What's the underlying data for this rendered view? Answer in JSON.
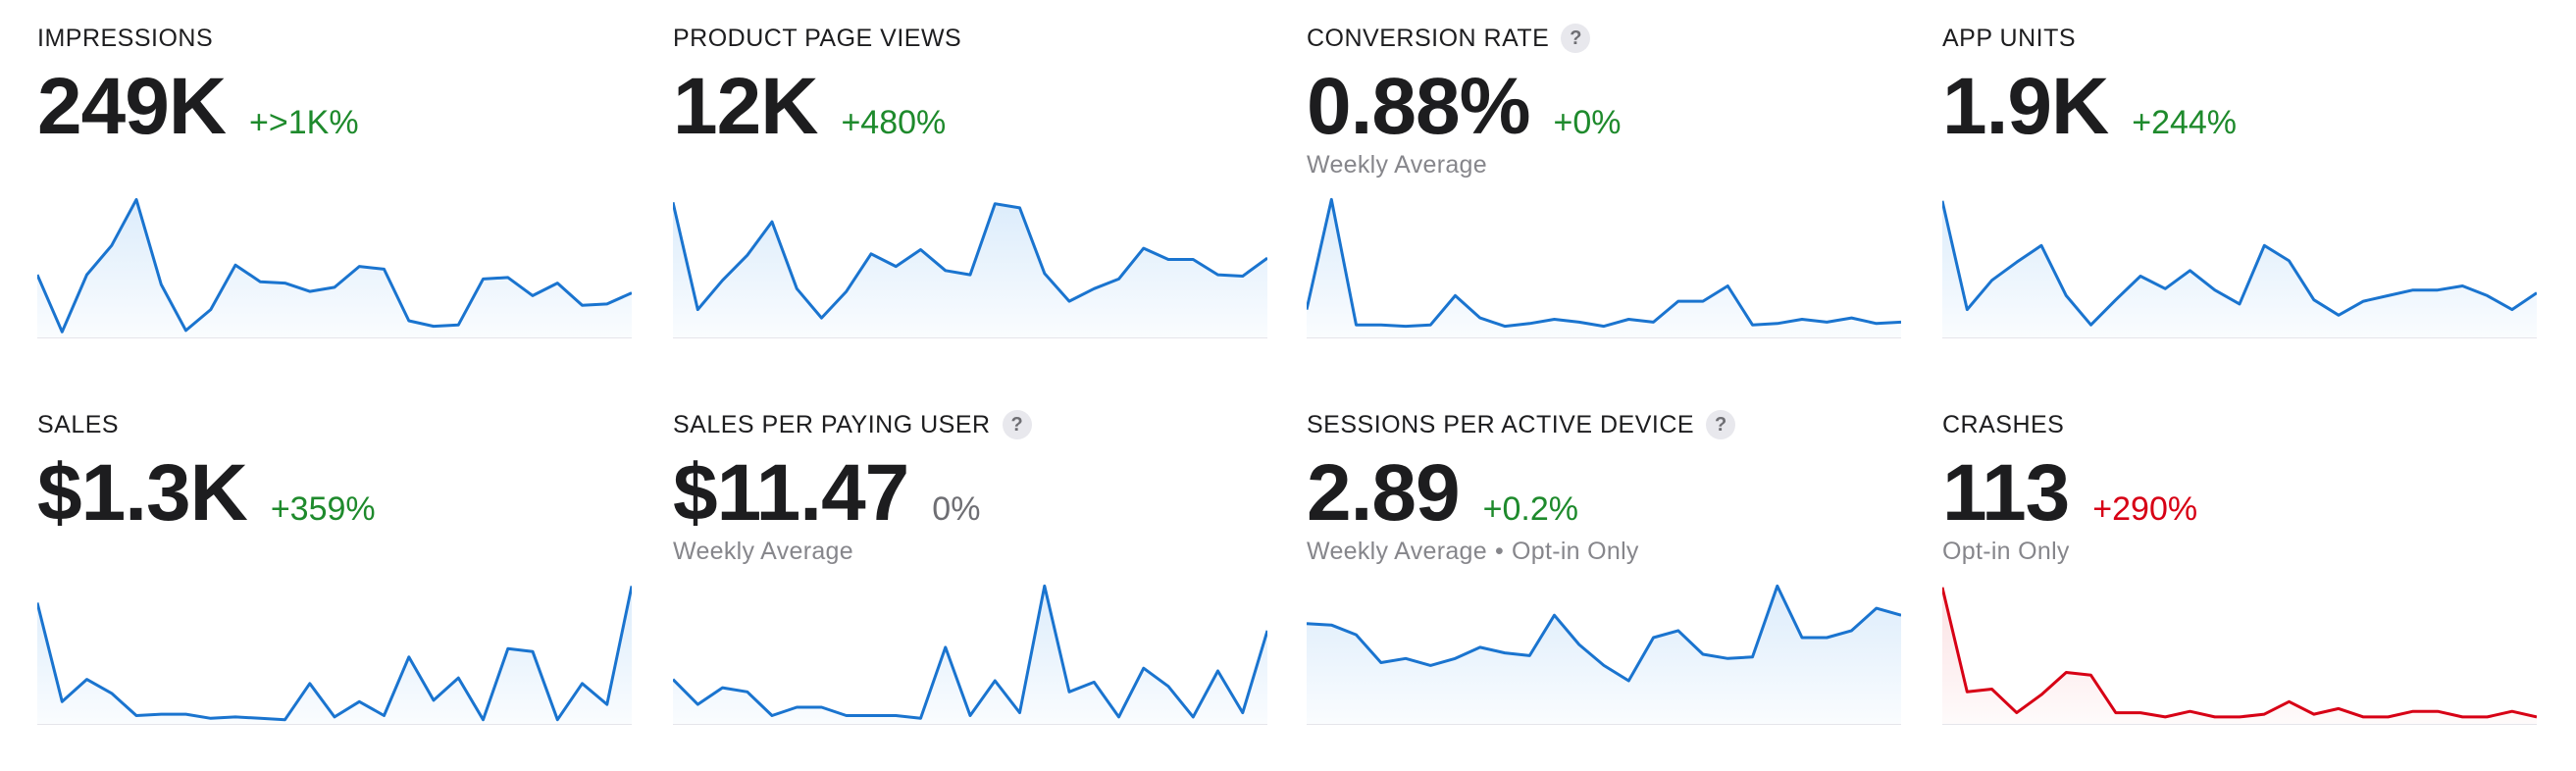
{
  "colors": {
    "blue": "#1a74cf",
    "blue_fill": "#dcecfb",
    "red": "#d70015",
    "red_fill": "#fbe1e3",
    "green": "#1e8a2c"
  },
  "metrics": [
    {
      "title": "IMPRESSIONS",
      "value": "249K",
      "delta": "+>1K%",
      "delta_kind": "pos",
      "has_help": false,
      "sub": "",
      "color": "blue",
      "series": [
        0.45,
        0.04,
        0.45,
        0.66,
        0.99,
        0.38,
        0.05,
        0.2,
        0.52,
        0.4,
        0.39,
        0.33,
        0.36,
        0.51,
        0.49,
        0.12,
        0.08,
        0.09,
        0.42,
        0.43,
        0.3,
        0.39,
        0.23,
        0.24,
        0.32
      ]
    },
    {
      "title": "PRODUCT PAGE VIEWS",
      "value": "12K",
      "delta": "+480%",
      "delta_kind": "pos",
      "has_help": false,
      "sub": "",
      "color": "blue",
      "series": [
        0.97,
        0.2,
        0.41,
        0.59,
        0.83,
        0.35,
        0.14,
        0.33,
        0.6,
        0.51,
        0.63,
        0.48,
        0.45,
        0.96,
        0.93,
        0.46,
        0.26,
        0.35,
        0.42,
        0.64,
        0.56,
        0.56,
        0.45,
        0.44,
        0.57
      ]
    },
    {
      "title": "CONVERSION RATE",
      "value": "0.88%",
      "delta": "+0%",
      "delta_kind": "pos",
      "has_help": true,
      "sub": "Weekly Average",
      "color": "blue",
      "series": [
        0.2,
        0.99,
        0.09,
        0.09,
        0.08,
        0.09,
        0.3,
        0.14,
        0.08,
        0.1,
        0.13,
        0.11,
        0.08,
        0.13,
        0.11,
        0.26,
        0.26,
        0.37,
        0.09,
        0.1,
        0.13,
        0.11,
        0.14,
        0.1,
        0.11
      ]
    },
    {
      "title": "APP UNITS",
      "value": "1.9K",
      "delta": "+244%",
      "delta_kind": "pos",
      "has_help": false,
      "sub": "",
      "color": "blue",
      "series": [
        0.98,
        0.2,
        0.41,
        0.54,
        0.66,
        0.3,
        0.09,
        0.27,
        0.44,
        0.35,
        0.48,
        0.34,
        0.24,
        0.66,
        0.55,
        0.27,
        0.16,
        0.26,
        0.3,
        0.34,
        0.34,
        0.37,
        0.3,
        0.2,
        0.32
      ]
    },
    {
      "title": "SALES",
      "value": "$1.3K",
      "delta": "+359%",
      "delta_kind": "pos",
      "has_help": false,
      "sub": "",
      "color": "blue",
      "series": [
        0.87,
        0.16,
        0.32,
        0.22,
        0.06,
        0.07,
        0.07,
        0.04,
        0.05,
        0.04,
        0.03,
        0.29,
        0.05,
        0.16,
        0.06,
        0.48,
        0.17,
        0.33,
        0.03,
        0.54,
        0.52,
        0.03,
        0.29,
        0.14,
        0.99
      ]
    },
    {
      "title": "SALES PER PAYING USER",
      "value": "$11.47",
      "delta": "0%",
      "delta_kind": "neutral",
      "has_help": true,
      "sub": "Weekly Average",
      "color": "blue",
      "series": [
        0.32,
        0.14,
        0.26,
        0.23,
        0.06,
        0.12,
        0.12,
        0.06,
        0.06,
        0.06,
        0.04,
        0.55,
        0.06,
        0.31,
        0.08,
        0.99,
        0.23,
        0.3,
        0.05,
        0.4,
        0.27,
        0.05,
        0.38,
        0.08,
        0.67
      ]
    },
    {
      "title": "SESSIONS PER ACTIVE DEVICE",
      "value": "2.89",
      "delta": "+0.2%",
      "delta_kind": "pos",
      "has_help": true,
      "sub": "Weekly Average",
      "sub_extra": "Opt-in Only",
      "color": "blue",
      "series": [
        0.72,
        0.71,
        0.64,
        0.44,
        0.47,
        0.42,
        0.47,
        0.55,
        0.51,
        0.49,
        0.78,
        0.57,
        0.42,
        0.31,
        0.62,
        0.67,
        0.5,
        0.47,
        0.48,
        0.99,
        0.62,
        0.62,
        0.67,
        0.83,
        0.78
      ]
    },
    {
      "title": "CRASHES",
      "value": "113",
      "delta": "+290%",
      "delta_kind": "neg",
      "has_help": false,
      "sub": "Opt-in Only",
      "color": "red",
      "series": [
        0.98,
        0.23,
        0.25,
        0.08,
        0.21,
        0.37,
        0.35,
        0.08,
        0.08,
        0.05,
        0.09,
        0.05,
        0.05,
        0.07,
        0.16,
        0.07,
        0.11,
        0.05,
        0.05,
        0.09,
        0.09,
        0.05,
        0.05,
        0.09,
        0.05
      ]
    }
  ]
}
